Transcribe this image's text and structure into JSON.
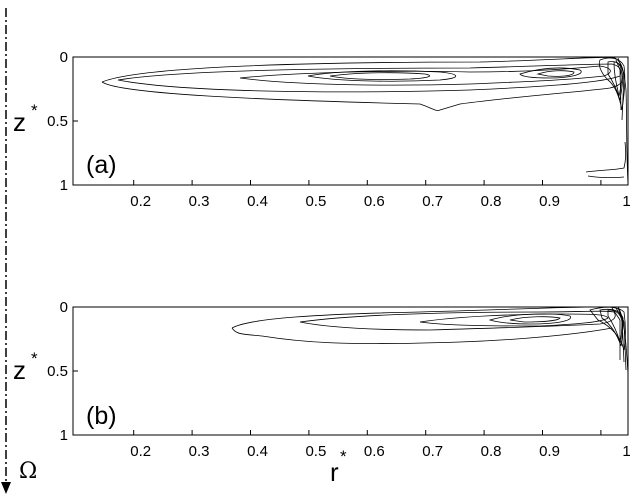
{
  "figure": {
    "rotation_symbol": "Ω",
    "x_label": "r",
    "x_label_superscript": "*",
    "panels": [
      {
        "label": "(a)",
        "y_label": "z",
        "y_label_superscript": "*",
        "x_ticks": [
          "0.2",
          "0.3",
          "0.4",
          "0.5",
          "0.6",
          "0.7",
          "0.8",
          "0.9",
          "1"
        ],
        "y_ticks": [
          "0",
          "0.5",
          "1"
        ]
      },
      {
        "label": "(b)",
        "y_label": "z",
        "y_label_superscript": "*",
        "x_ticks": [
          "0.2",
          "0.3",
          "0.4",
          "0.5",
          "0.6",
          "0.7",
          "0.8",
          "0.9",
          "1"
        ],
        "y_ticks": [
          "0",
          "0.5",
          "1"
        ]
      }
    ]
  }
}
